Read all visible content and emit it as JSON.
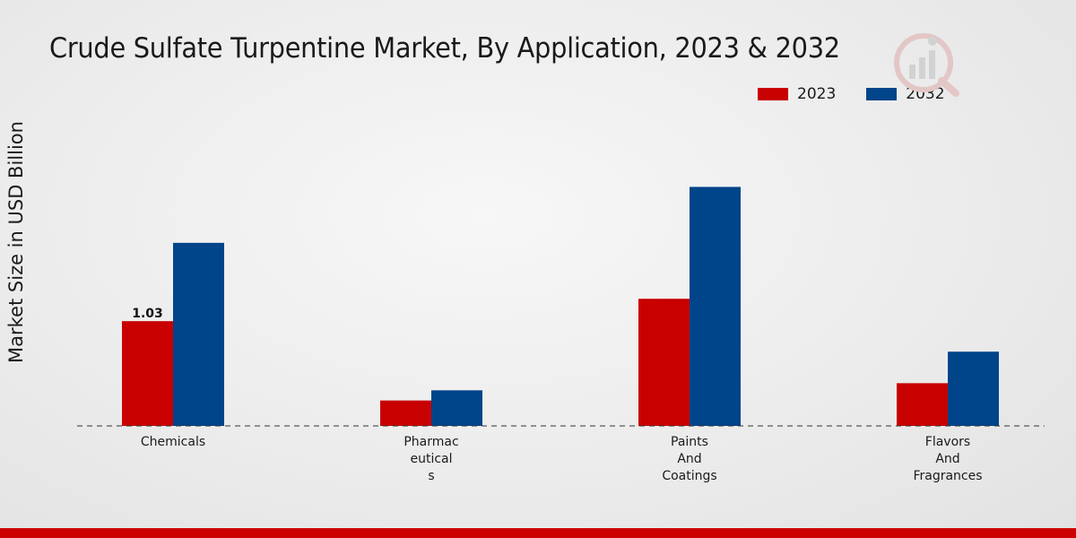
{
  "chart_data": {
    "type": "bar",
    "title": "Crude Sulfate Turpentine Market, By Application, 2023 & 2032",
    "xlabel": "",
    "ylabel": "Market Size in USD Billion",
    "categories": [
      [
        "Chemicals"
      ],
      [
        "Pharmac",
        "eutical",
        "s"
      ],
      [
        "Paints",
        "And",
        "Coatings"
      ],
      [
        "Flavors",
        "And",
        "Fragrances"
      ]
    ],
    "series": [
      {
        "name": "2023",
        "color": "#c80000",
        "values": [
          1.03,
          0.25,
          1.25,
          0.42
        ]
      },
      {
        "name": "2032",
        "color": "#004489",
        "values": [
          1.8,
          0.35,
          2.35,
          0.73
        ]
      }
    ],
    "data_labels": [
      {
        "series": 0,
        "index": 0,
        "text": "1.03"
      }
    ],
    "ylim": [
      0,
      3.5
    ],
    "grid": false,
    "legend_position": "top-right"
  }
}
